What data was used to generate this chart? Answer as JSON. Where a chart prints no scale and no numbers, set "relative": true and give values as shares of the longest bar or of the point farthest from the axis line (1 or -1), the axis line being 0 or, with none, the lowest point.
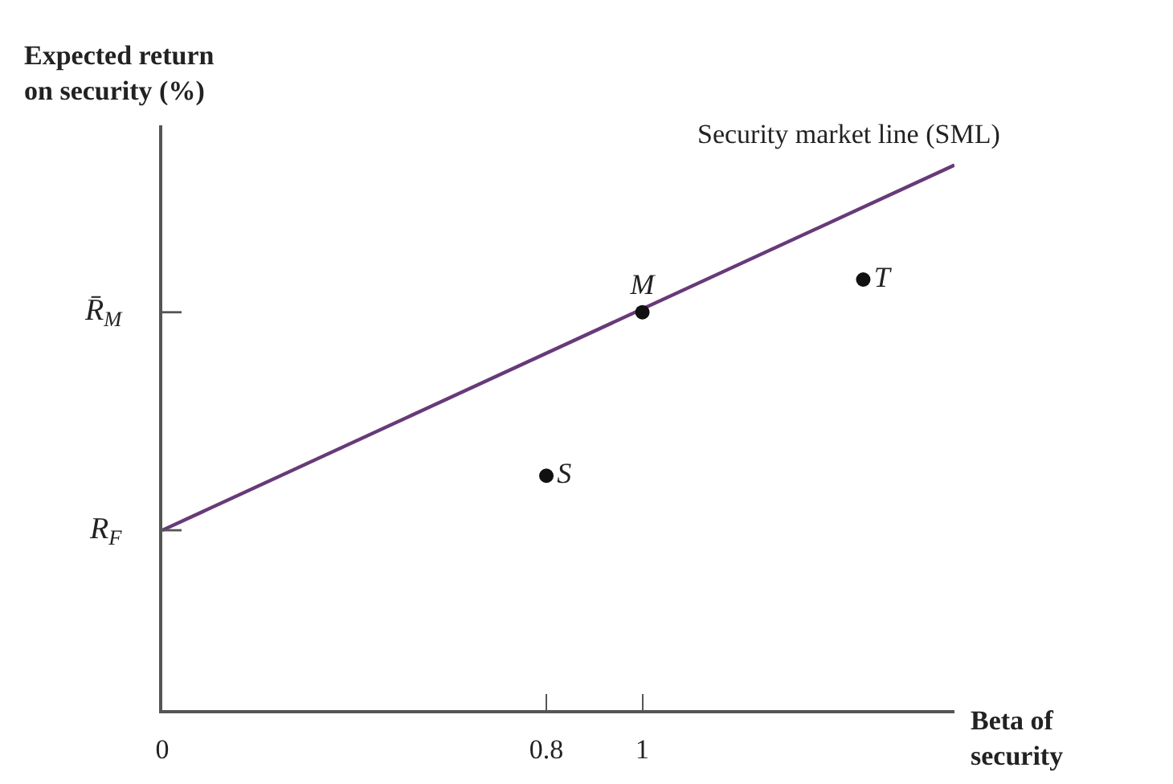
{
  "chart_data": {
    "type": "line",
    "relative": true,
    "xlabel": "Beta of\nsecurity",
    "ylabel": "Expected return\non security (%)",
    "xlim": [
      0,
      1.65
    ],
    "xticks": [
      0,
      0.8,
      1
    ],
    "series": [
      {
        "name": "Security market line (SML)",
        "color": "#673a78",
        "marker": "none",
        "line_style": "solid",
        "x": [
          0,
          1.65
        ],
        "values": [
          0.33,
          1.0
        ]
      },
      {
        "name": "S",
        "type": "scatter",
        "color": "#111111",
        "marker": "circle",
        "x": [
          0.8
        ],
        "values": [
          0.43
        ]
      },
      {
        "name": "M",
        "type": "scatter",
        "color": "#111111",
        "marker": "circle",
        "x": [
          1
        ],
        "values": [
          0.73
        ]
      },
      {
        "name": "T",
        "type": "scatter",
        "color": "#111111",
        "marker": "circle",
        "x": [
          1.46
        ],
        "values": [
          0.79
        ]
      }
    ],
    "ref_lines": [
      {
        "axis": "y",
        "value": 0.33,
        "label": "R$_{F}$"
      },
      {
        "axis": "y",
        "value": 0.73,
        "label": "R̄$_{M}$"
      }
    ]
  }
}
